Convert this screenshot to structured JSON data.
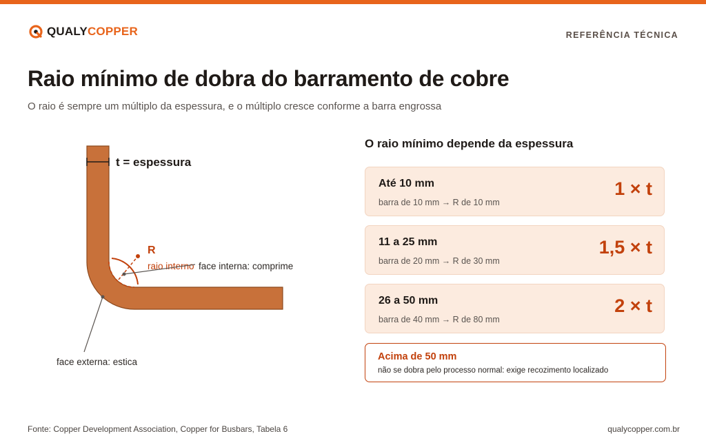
{
  "header": {
    "brand_part1": "QUALY",
    "brand_part2": "COPPER",
    "section_label": "REFERÊNCIA TÉCNICA"
  },
  "title": "Raio mínimo de dobra do barramento de cobre",
  "subtitle": "O raio é sempre um múltiplo da espessura, e o múltiplo cresce conforme a barra engrossa",
  "diagram": {
    "thickness_label": "t = espessura",
    "radius_letter": "R",
    "inner_radius_label": "raio interno",
    "inner_face_label": "face interna: comprime",
    "outer_face_label": "face externa: estica"
  },
  "table": {
    "title": "O raio mínimo depende da espessura",
    "rows": [
      {
        "range": "Até 10 mm",
        "example": "barra de 10 mm → R de 10 mm",
        "multiplier": "1 × t"
      },
      {
        "range": "11 a 25 mm",
        "example": "barra de 20 mm → R de 30 mm",
        "multiplier": "1,5 × t"
      },
      {
        "range": "26 a 50 mm",
        "example": "barra de 40 mm → R de 80 mm",
        "multiplier": "2 × t"
      }
    ],
    "warning": {
      "title": "Acima de 50 mm",
      "text": "não se dobra pelo processo normal: exige recozimento localizado"
    }
  },
  "footer": {
    "source": "Fonte: Copper Development Association, Copper for Busbars, Tabela 6",
    "website": "qualycopper.com.br"
  },
  "colors": {
    "accent": "#e8641b",
    "copper": "#c8713a",
    "dark_accent": "#c2410c",
    "card_bg": "#fcebdf"
  }
}
